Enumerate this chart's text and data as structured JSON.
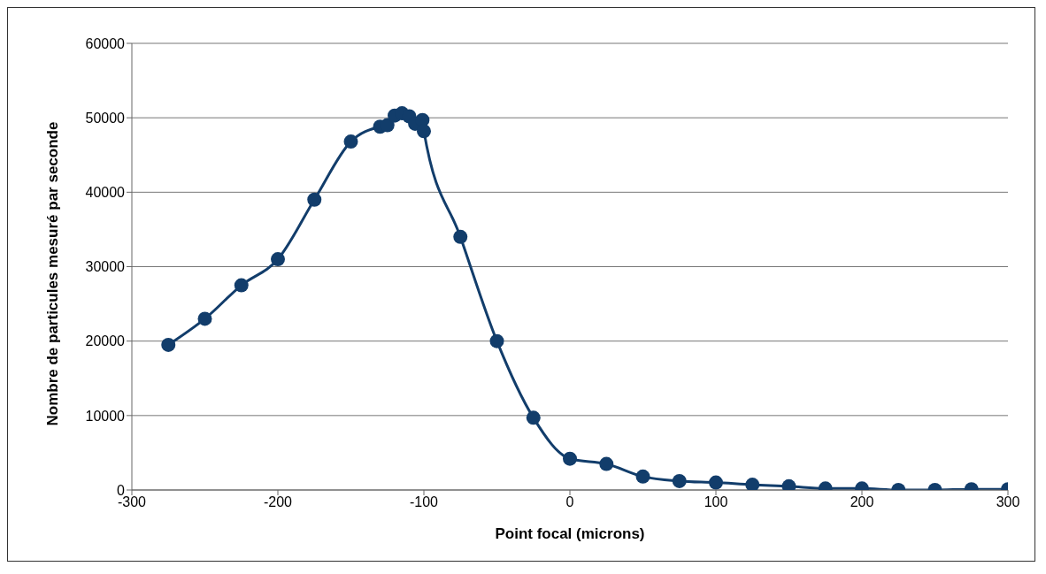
{
  "chart_data": {
    "type": "line",
    "xlabel": "Point focal (microns)",
    "ylabel": "Nombre de particules mesuré par seconde",
    "x": [
      -275,
      -250,
      -225,
      -200,
      -175,
      -150,
      -130,
      -125,
      -120,
      -115,
      -110,
      -106,
      -101,
      -100,
      -75,
      -50,
      -25,
      0,
      25,
      50,
      75,
      100,
      125,
      150,
      175,
      200,
      225,
      250,
      275,
      300
    ],
    "series": [
      {
        "color": "#123d6b",
        "values": [
          19500,
          23000,
          27500,
          31000,
          39000,
          46800,
          48800,
          49000,
          50300,
          50600,
          50200,
          49200,
          49700,
          48200,
          34000,
          20000,
          9700,
          4200,
          3500,
          1800,
          1200,
          1000,
          700,
          500,
          200,
          200,
          0,
          0,
          100,
          100
        ]
      }
    ],
    "xlim": [
      -300,
      300
    ],
    "xticks": [
      -300,
      -200,
      -100,
      0,
      100,
      200,
      300
    ],
    "ylim": [
      0,
      60000
    ],
    "yticks": [
      0,
      10000,
      20000,
      30000,
      40000,
      50000,
      60000
    ],
    "grid": "y",
    "marker": "circle",
    "line_style": "solid"
  }
}
